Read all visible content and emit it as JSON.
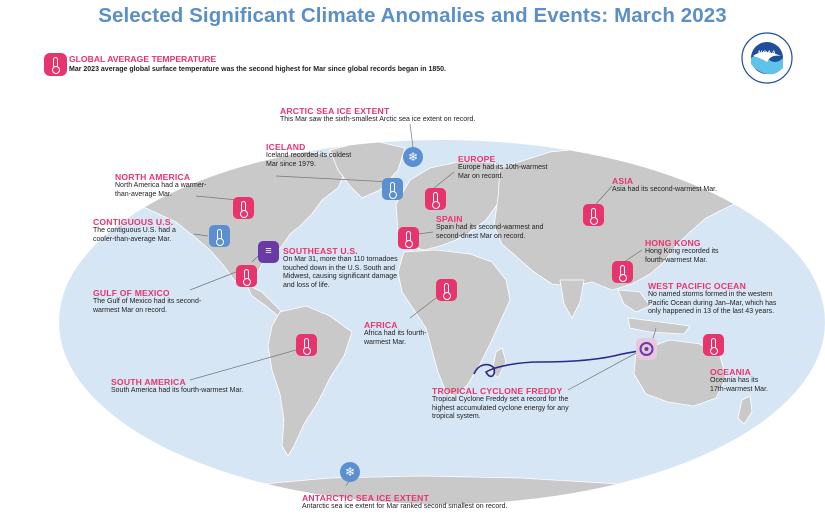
{
  "title": "Selected Significant Climate Anomalies and Events: March 2023",
  "colors": {
    "warm": "#e8346c",
    "cool": "#5b8fd0",
    "storm": "#6a3aa7",
    "title": "#5b8fc7",
    "ocean": "#d7e6f5",
    "land": "#c8c8c8"
  },
  "global": {
    "heading": "GLOBAL AVERAGE TEMPERATURE",
    "text": "Mar 2023 average global surface temperature was the second highest for Mar since global records began in 1850.",
    "icon": "thermometer-icon"
  },
  "logo": {
    "name": "NOAA",
    "ring_text": "NATIONAL OCEANIC AND ATMOSPHERIC ADMINISTRATION · U.S. DEPARTMENT OF COMMERCE"
  },
  "annotations": [
    {
      "id": "arctic",
      "heading": "ARCTIC SEA ICE EXTENT",
      "text": "This Mar saw the sixth-smallest Arctic sea ice extent on record.",
      "icon": "sea-ice-icon"
    },
    {
      "id": "iceland",
      "heading": "ICELAND",
      "text": "Iceland recorded its coldest\nMar since 1979.",
      "icon": "thermometer-icon"
    },
    {
      "id": "europe",
      "heading": "EUROPE",
      "text": "Europe had its 10th-warmest\nMar on record.",
      "icon": "thermometer-icon"
    },
    {
      "id": "asia",
      "heading": "ASIA",
      "text": "Asia had its second-warmest Mar.",
      "icon": "thermometer-icon"
    },
    {
      "id": "north-america",
      "heading": "NORTH AMERICA",
      "text": "North America had a warmer-\nthan-average Mar.",
      "icon": "thermometer-icon"
    },
    {
      "id": "contiguous-us",
      "heading": "CONTIGUOUS U.S.",
      "text": "The contiguous U.S. had a\ncooler-than-average Mar.",
      "icon": "thermometer-icon"
    },
    {
      "id": "spain",
      "heading": "SPAIN",
      "text": "Spain had its second-warmest and\nsecond-driest Mar on record.",
      "icon": "thermometer-icon"
    },
    {
      "id": "hong-kong",
      "heading": "HONG KONG",
      "text": "Hong Kong recorded its\nfourth-warmest Mar.",
      "icon": "thermometer-icon"
    },
    {
      "id": "southeast-us",
      "heading": "SOUTHEAST U.S.",
      "text": "On Mar 31, more than 110 tornadoes\ntouched down in the U.S. South and\nMidwest, causing significant damage\nand loss of life.",
      "icon": "tornado-icon"
    },
    {
      "id": "gulf-of-mexico",
      "heading": "GULF OF MEXICO",
      "text": "The Gulf of Mexico had its second-\nwarmest Mar on record.",
      "icon": "thermometer-icon"
    },
    {
      "id": "west-pacific",
      "heading": "WEST PACIFIC OCEAN",
      "text": "No named storms formed in the western\nPacific Ocean during Jan–Mar, which has\nonly happened in 13 of the last 43 years.",
      "icon": ""
    },
    {
      "id": "africa",
      "heading": "AFRICA",
      "text": "Africa had its fourth-\nwarmest Mar.",
      "icon": "thermometer-icon"
    },
    {
      "id": "oceania",
      "heading": "OCEANIA",
      "text": "Oceania has its\n17th-warmest Mar.",
      "icon": "thermometer-icon"
    },
    {
      "id": "south-america",
      "heading": "SOUTH AMERICA",
      "text": "South America had its fourth-warmest Mar.",
      "icon": "thermometer-icon"
    },
    {
      "id": "freddy",
      "heading": "TROPICAL CYCLONE FREDDY",
      "text": "Tropical Cyclone Freddy set a record for the\nhighest accumulated cyclone energy for any\ntropical system.",
      "icon": "cyclone-icon"
    },
    {
      "id": "antarctic",
      "heading": "ANTARCTIC SEA ICE EXTENT",
      "text": "Antarctic sea ice extent for Mar ranked second smallest on record.",
      "icon": "sea-ice-icon"
    }
  ]
}
